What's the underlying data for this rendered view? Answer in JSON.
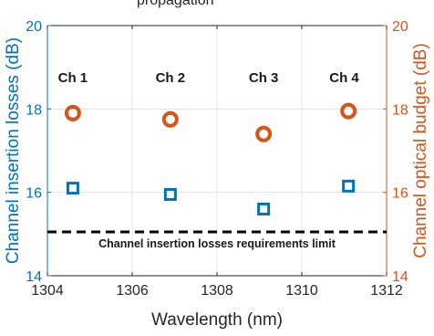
{
  "chart_data": {
    "type": "scatter",
    "top_text": "propagation",
    "xlabel": "Wavelength (nm)",
    "ylabel_left": "Channel insertion losses (dB)",
    "ylabel_right": "Channel optical budget (dB)",
    "xlim": [
      1304,
      1312
    ],
    "ylim_left": [
      14,
      20
    ],
    "ylim_right": [
      14,
      20
    ],
    "x_ticks": [
      1304,
      1306,
      1308,
      1310,
      1312
    ],
    "y_ticks_left": [
      14,
      16,
      18,
      20
    ],
    "y_ticks_right": [
      14,
      16,
      18,
      20
    ],
    "grid": true,
    "colors": {
      "left_axis": "#0072bd",
      "right_axis": "#d95319",
      "limit_line": "#000000"
    },
    "channel_labels": [
      {
        "label": "Ch 1",
        "x": 1304.6
      },
      {
        "label": "Ch 2",
        "x": 1306.9
      },
      {
        "label": "Ch 3",
        "x": 1309.1
      },
      {
        "label": "Ch 4",
        "x": 1311.0
      }
    ],
    "series": [
      {
        "axis": "left",
        "marker": "square",
        "x": [
          1304.6,
          1306.9,
          1309.1,
          1311.1
        ],
        "y": [
          16.1,
          15.95,
          15.6,
          16.15
        ]
      },
      {
        "axis": "right",
        "marker": "circle",
        "x": [
          1304.6,
          1306.9,
          1309.1,
          1311.1
        ],
        "y": [
          17.9,
          17.75,
          17.4,
          17.95
        ]
      }
    ],
    "limit_line": {
      "label": "Channel insertion losses requirements limit",
      "y": 15.05,
      "style": "dashed"
    }
  }
}
